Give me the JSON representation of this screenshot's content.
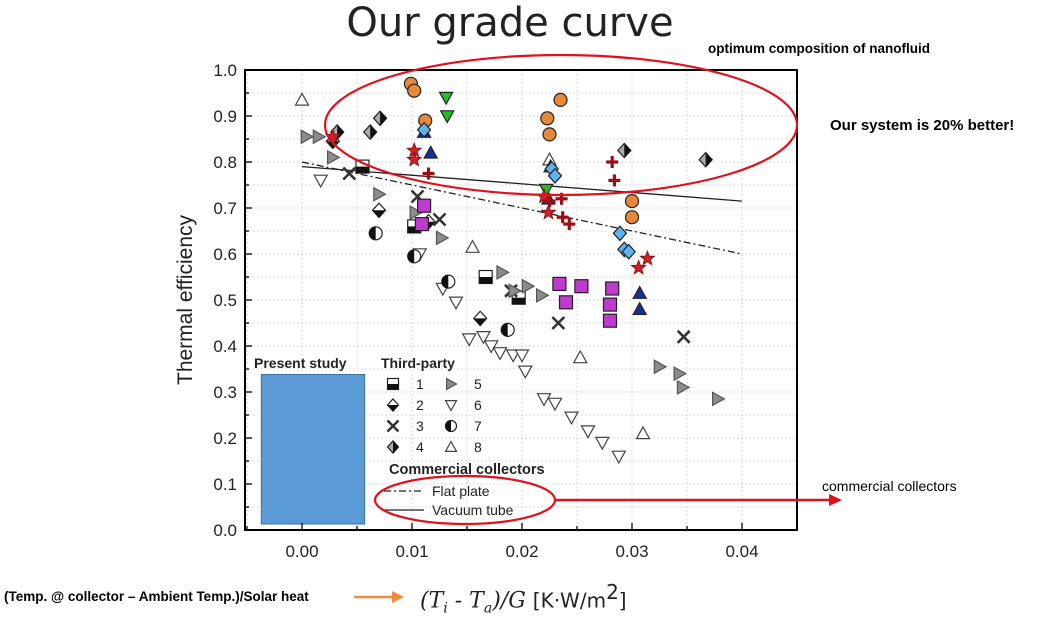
{
  "slide": {
    "title": "Our grade curve",
    "annotation_top": "optimum composition of nanofluid",
    "annotation_better": "Our system is 20% better!",
    "annotation_commercial": "commercial collectors",
    "caption_x": "(Temp. @ collector – Ambient Temp.)/Solar heat",
    "colors": {
      "highlight": "#e0101c",
      "arrow": "#f08a3c"
    }
  },
  "chart_data": {
    "type": "scatter",
    "ylabel": "Thermal efficiency",
    "xlabel_parts": {
      "pre": "(T",
      "sub1": "i",
      "mid": " - T",
      "sub2": "a",
      "post": ")/G",
      "unit": "[K·W/m",
      "unit_sup": "2",
      "unit_end": "]"
    },
    "xlim": [
      -0.005,
      0.045
    ],
    "ylim": [
      0.0,
      1.0
    ],
    "x_ticks": [
      "0.00",
      "0.01",
      "0.02",
      "0.03",
      "0.04"
    ],
    "y_ticks": [
      "0.0",
      "0.1",
      "0.2",
      "0.3",
      "0.4",
      "0.5",
      "0.6",
      "0.7",
      "0.8",
      "0.9",
      "1.0"
    ],
    "grid": true,
    "present_study_region": {
      "label": "Present study",
      "x": [
        -0.0037,
        0.0057
      ],
      "y": [
        0.013,
        0.338
      ],
      "color": "#5b9bd5"
    },
    "legend_titles": {
      "third_party": "Third-party",
      "commercial": "Commercial collectors"
    },
    "third_party_legend": [
      {
        "label": "1",
        "marker": "sq-half"
      },
      {
        "label": "2",
        "marker": "dia-half"
      },
      {
        "label": "3",
        "marker": "x"
      },
      {
        "label": "4",
        "marker": "dia-lr"
      },
      {
        "label": "5",
        "marker": "tri-right"
      },
      {
        "label": "6",
        "marker": "tri-down-open"
      },
      {
        "label": "7",
        "marker": "circ-half"
      },
      {
        "label": "8",
        "marker": "tri-up-open"
      }
    ],
    "commercial_lines": [
      {
        "name": "Flat plate",
        "style": "dashdot",
        "x": [
          0.0,
          0.04
        ],
        "y": [
          0.8,
          0.6
        ]
      },
      {
        "name": "Vacuum tube",
        "style": "solid",
        "x": [
          0.0,
          0.04
        ],
        "y": [
          0.79,
          0.715
        ]
      }
    ],
    "series": [
      {
        "name": "1",
        "marker": "sq-half",
        "points": [
          [
            0.0055,
            0.79
          ],
          [
            0.0102,
            0.66
          ],
          [
            0.0167,
            0.55
          ],
          [
            0.0197,
            0.505
          ]
        ]
      },
      {
        "name": "2",
        "marker": "dia-half",
        "points": [
          [
            0.0028,
            0.845
          ],
          [
            0.007,
            0.695
          ],
          [
            0.0115,
            0.67
          ],
          [
            0.0162,
            0.46
          ]
        ]
      },
      {
        "name": "3",
        "marker": "x",
        "points": [
          [
            0.0043,
            0.775
          ],
          [
            0.0105,
            0.725
          ],
          [
            0.0125,
            0.675
          ],
          [
            0.019,
            0.52
          ],
          [
            0.0233,
            0.45
          ],
          [
            0.0347,
            0.42
          ]
        ]
      },
      {
        "name": "4",
        "marker": "dia-lr",
        "points": [
          [
            0.0032,
            0.865
          ],
          [
            0.0062,
            0.865
          ],
          [
            0.0071,
            0.895
          ],
          [
            0.0293,
            0.825
          ],
          [
            0.0367,
            0.805
          ]
        ]
      },
      {
        "name": "5",
        "marker": "tri-right",
        "points": [
          [
            0.0004,
            0.855
          ],
          [
            0.0015,
            0.855
          ],
          [
            0.0028,
            0.81
          ],
          [
            0.007,
            0.73
          ],
          [
            0.0103,
            0.69
          ],
          [
            0.0127,
            0.635
          ],
          [
            0.0182,
            0.56
          ],
          [
            0.0193,
            0.52
          ],
          [
            0.0205,
            0.53
          ],
          [
            0.0218,
            0.51
          ],
          [
            0.0325,
            0.355
          ],
          [
            0.0343,
            0.34
          ],
          [
            0.0346,
            0.31
          ],
          [
            0.0378,
            0.285
          ]
        ]
      },
      {
        "name": "6",
        "marker": "tri-down-open",
        "points": [
          [
            0.0017,
            0.76
          ],
          [
            0.0107,
            0.6
          ],
          [
            0.0128,
            0.525
          ],
          [
            0.014,
            0.495
          ],
          [
            0.0152,
            0.415
          ],
          [
            0.0165,
            0.42
          ],
          [
            0.0172,
            0.4
          ],
          [
            0.018,
            0.385
          ],
          [
            0.0192,
            0.38
          ],
          [
            0.02,
            0.38
          ],
          [
            0.0203,
            0.345
          ],
          [
            0.022,
            0.285
          ],
          [
            0.023,
            0.275
          ],
          [
            0.0245,
            0.245
          ],
          [
            0.026,
            0.215
          ],
          [
            0.0273,
            0.19
          ],
          [
            0.0288,
            0.16
          ]
        ]
      },
      {
        "name": "7",
        "marker": "circ-half",
        "points": [
          [
            0.0067,
            0.645
          ],
          [
            0.0102,
            0.595
          ],
          [
            0.0133,
            0.54
          ],
          [
            0.0187,
            0.435
          ]
        ]
      },
      {
        "name": "8",
        "marker": "tri-up-open",
        "points": [
          [
            0.0,
            0.935
          ],
          [
            0.0155,
            0.615
          ],
          [
            0.0225,
            0.805
          ],
          [
            0.0253,
            0.375
          ],
          [
            0.031,
            0.21
          ]
        ]
      },
      {
        "name": "",
        "marker": "circle",
        "color": "#e8893a",
        "points": [
          [
            0.0099,
            0.97
          ],
          [
            0.0102,
            0.955
          ],
          [
            0.0112,
            0.89
          ],
          [
            0.0223,
            0.895
          ],
          [
            0.0225,
            0.86
          ],
          [
            0.0235,
            0.935
          ],
          [
            0.03,
            0.715
          ],
          [
            0.03,
            0.68
          ]
        ]
      },
      {
        "name": "",
        "marker": "tri-down",
        "color": "#20c020",
        "points": [
          [
            0.0131,
            0.94
          ],
          [
            0.0132,
            0.9
          ],
          [
            0.0222,
            0.74
          ]
        ]
      },
      {
        "name": "",
        "marker": "tri-up",
        "color": "#1430a0",
        "points": [
          [
            0.0111,
            0.865
          ],
          [
            0.0117,
            0.82
          ],
          [
            0.0226,
            0.79
          ],
          [
            0.0224,
            0.72
          ],
          [
            0.0307,
            0.515
          ],
          [
            0.0307,
            0.48
          ]
        ]
      },
      {
        "name": "",
        "marker": "diamond",
        "color": "#5fb4f0",
        "points": [
          [
            0.0111,
            0.87
          ],
          [
            0.0227,
            0.785
          ],
          [
            0.023,
            0.77
          ],
          [
            0.0289,
            0.645
          ],
          [
            0.0293,
            0.61
          ],
          [
            0.0297,
            0.605
          ]
        ]
      },
      {
        "name": "",
        "marker": "square",
        "color": "#c03ad0",
        "points": [
          [
            0.0111,
            0.705
          ],
          [
            0.0109,
            0.665
          ],
          [
            0.0234,
            0.535
          ],
          [
            0.024,
            0.495
          ],
          [
            0.0254,
            0.53
          ],
          [
            0.028,
            0.49
          ],
          [
            0.028,
            0.455
          ],
          [
            0.0282,
            0.525
          ]
        ]
      },
      {
        "name": "",
        "marker": "star",
        "color": "#d21e28",
        "points": [
          [
            0.0028,
            0.855
          ],
          [
            0.0102,
            0.825
          ],
          [
            0.0102,
            0.805
          ],
          [
            0.022,
            0.725
          ],
          [
            0.0224,
            0.69
          ],
          [
            0.0306,
            0.57
          ],
          [
            0.0314,
            0.59
          ]
        ]
      },
      {
        "name": "",
        "marker": "plus",
        "color": "#9c0e14",
        "points": [
          [
            0.0115,
            0.775
          ],
          [
            0.0225,
            0.715
          ],
          [
            0.0236,
            0.72
          ],
          [
            0.0237,
            0.68
          ],
          [
            0.0243,
            0.665
          ],
          [
            0.0282,
            0.8
          ],
          [
            0.0284,
            0.76
          ]
        ]
      }
    ]
  }
}
